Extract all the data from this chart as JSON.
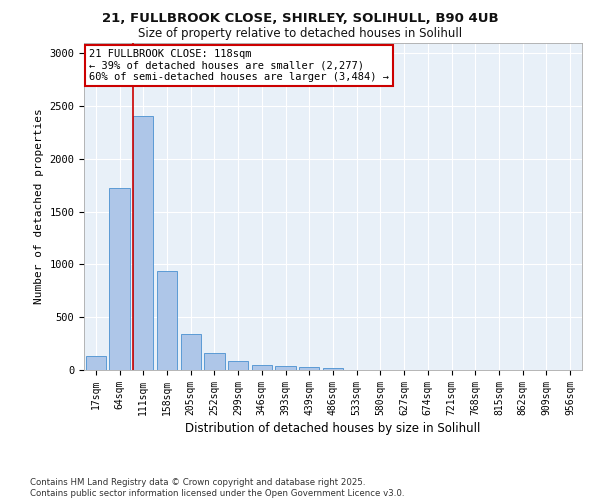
{
  "title_line1": "21, FULLBROOK CLOSE, SHIRLEY, SOLIHULL, B90 4UB",
  "title_line2": "Size of property relative to detached houses in Solihull",
  "xlabel": "Distribution of detached houses by size in Solihull",
  "ylabel": "Number of detached properties",
  "categories": [
    "17sqm",
    "64sqm",
    "111sqm",
    "158sqm",
    "205sqm",
    "252sqm",
    "299sqm",
    "346sqm",
    "393sqm",
    "439sqm",
    "486sqm",
    "533sqm",
    "580sqm",
    "627sqm",
    "674sqm",
    "721sqm",
    "768sqm",
    "815sqm",
    "862sqm",
    "909sqm",
    "956sqm"
  ],
  "values": [
    130,
    1720,
    2400,
    940,
    340,
    160,
    85,
    50,
    40,
    30,
    20,
    0,
    0,
    0,
    0,
    0,
    0,
    0,
    0,
    0,
    0
  ],
  "bar_color": "#aec6e8",
  "bar_edge_color": "#5b9bd5",
  "red_line_index": 2,
  "annotation_text": "21 FULLBROOK CLOSE: 118sqm\n← 39% of detached houses are smaller (2,277)\n60% of semi-detached houses are larger (3,484) →",
  "annotation_box_color": "#ffffff",
  "annotation_box_edge_color": "#cc0000",
  "ylim": [
    0,
    3100
  ],
  "yticks": [
    0,
    500,
    1000,
    1500,
    2000,
    2500,
    3000
  ],
  "background_color": "#e8f0f8",
  "grid_color": "#ffffff",
  "footer_line1": "Contains HM Land Registry data © Crown copyright and database right 2025.",
  "footer_line2": "Contains public sector information licensed under the Open Government Licence v3.0."
}
